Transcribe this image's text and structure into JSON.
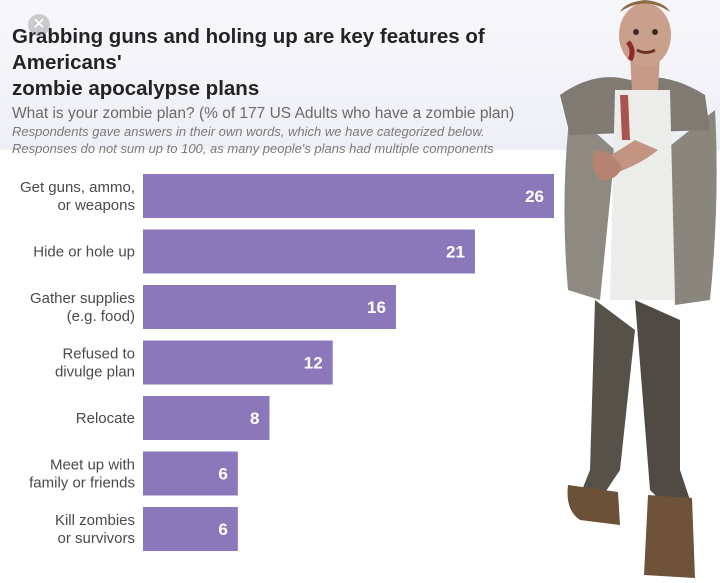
{
  "header": {
    "title_line1": "Grabbing guns and holing up are key features of Americans'",
    "title_line2": "zombie apocalypse plans",
    "subtitle": "What is your zombie plan? (% of 177 US Adults who have a zombie plan)",
    "note_line1": "Respondents gave answers in their own words, which we have categorized below.",
    "note_line2": "Responses do not sum up to 100, as many people's plans had multiple components"
  },
  "close_icon": "close-icon",
  "colors": {
    "bar": "#8a78bb",
    "label": "#4a4a4a",
    "value": "#ffffff"
  },
  "chart_data": {
    "type": "bar",
    "orientation": "horizontal",
    "title": "Grabbing guns and holing up are key features of Americans' zombie apocalypse plans",
    "subtitle": "What is your zombie plan? (% of 177 US Adults who have a zombie plan)",
    "categories": [
      [
        "Get guns, ammo,",
        "or weapons"
      ],
      [
        "Hide or hole up"
      ],
      [
        "Gather supplies",
        "(e.g. food)"
      ],
      [
        "Refused to",
        "divulge plan"
      ],
      [
        "Relocate"
      ],
      [
        "Meet up with",
        "family or friends"
      ],
      [
        "Kill zombies",
        "or survivors"
      ]
    ],
    "values": [
      26,
      21,
      16,
      12,
      8,
      6,
      6
    ],
    "xlim": [
      0,
      26
    ],
    "grid": false,
    "legend": "none"
  }
}
